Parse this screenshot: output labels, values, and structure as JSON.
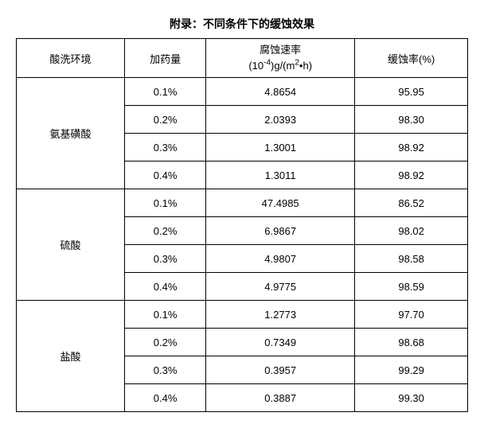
{
  "title": "附录：不同条件下的缓蚀效果",
  "columns": {
    "env": "酸洗环境",
    "dose": "加药量",
    "rate_line1": "腐蚀速率",
    "rate_line2_pre": "(10",
    "rate_line2_sup": "-4",
    "rate_line2_mid": ")g/(m",
    "rate_line2_sup2": "2",
    "rate_line2_post": "•h)",
    "inhib": "缓蚀率(%)"
  },
  "groups": [
    {
      "name": "氨基磺酸",
      "rows": [
        {
          "dose": "0.1%",
          "rate": "4.8654",
          "inhib": "95.95"
        },
        {
          "dose": "0.2%",
          "rate": "2.0393",
          "inhib": "98.30"
        },
        {
          "dose": "0.3%",
          "rate": "1.3001",
          "inhib": "98.92"
        },
        {
          "dose": "0.4%",
          "rate": "1.3011",
          "inhib": "98.92"
        }
      ]
    },
    {
      "name": "硫酸",
      "rows": [
        {
          "dose": "0.1%",
          "rate": "47.4985",
          "inhib": "86.52"
        },
        {
          "dose": "0.2%",
          "rate": "6.9867",
          "inhib": "98.02"
        },
        {
          "dose": "0.3%",
          "rate": "4.9807",
          "inhib": "98.58"
        },
        {
          "dose": "0.4%",
          "rate": "4.9775",
          "inhib": "98.59"
        }
      ]
    },
    {
      "name": "盐酸",
      "rows": [
        {
          "dose": "0.1%",
          "rate": "1.2773",
          "inhib": "97.70"
        },
        {
          "dose": "0.2%",
          "rate": "0.7349",
          "inhib": "98.68"
        },
        {
          "dose": "0.3%",
          "rate": "0.3957",
          "inhib": "99.29"
        },
        {
          "dose": "0.4%",
          "rate": "0.3887",
          "inhib": "99.30"
        }
      ]
    }
  ],
  "colwidths": [
    "24%",
    "18%",
    "33%",
    "25%"
  ]
}
